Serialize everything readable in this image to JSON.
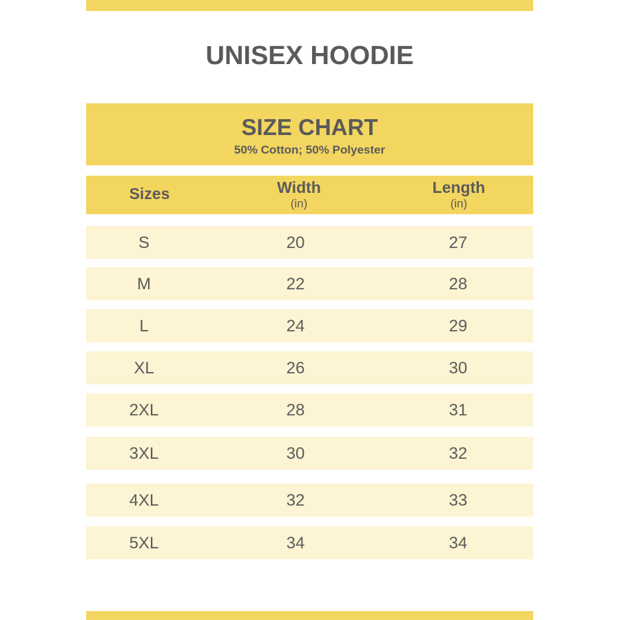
{
  "title": "UNISEX HOODIE",
  "banner": {
    "heading": "SIZE CHART",
    "subheading": "50% Cotton; 50% Polyester"
  },
  "columns": [
    {
      "label": "Sizes",
      "unit": ""
    },
    {
      "label": "Width",
      "unit": "(in)"
    },
    {
      "label": "Length",
      "unit": "(in)"
    }
  ],
  "rows": [
    {
      "size": "S",
      "width": "20",
      "length": "27"
    },
    {
      "size": "M",
      "width": "22",
      "length": "28"
    },
    {
      "size": "L",
      "width": "24",
      "length": "29"
    },
    {
      "size": "XL",
      "width": "26",
      "length": "30"
    },
    {
      "size": "2XL",
      "width": "28",
      "length": "31"
    },
    {
      "size": "3XL",
      "width": "30",
      "length": "32"
    },
    {
      "size": "4XL",
      "width": "32",
      "length": "33"
    },
    {
      "size": "5XL",
      "width": "34",
      "length": "34"
    }
  ],
  "colors": {
    "accent": "#f3d65f",
    "row": "#fdf4d3",
    "text": "#5a5a5a"
  }
}
